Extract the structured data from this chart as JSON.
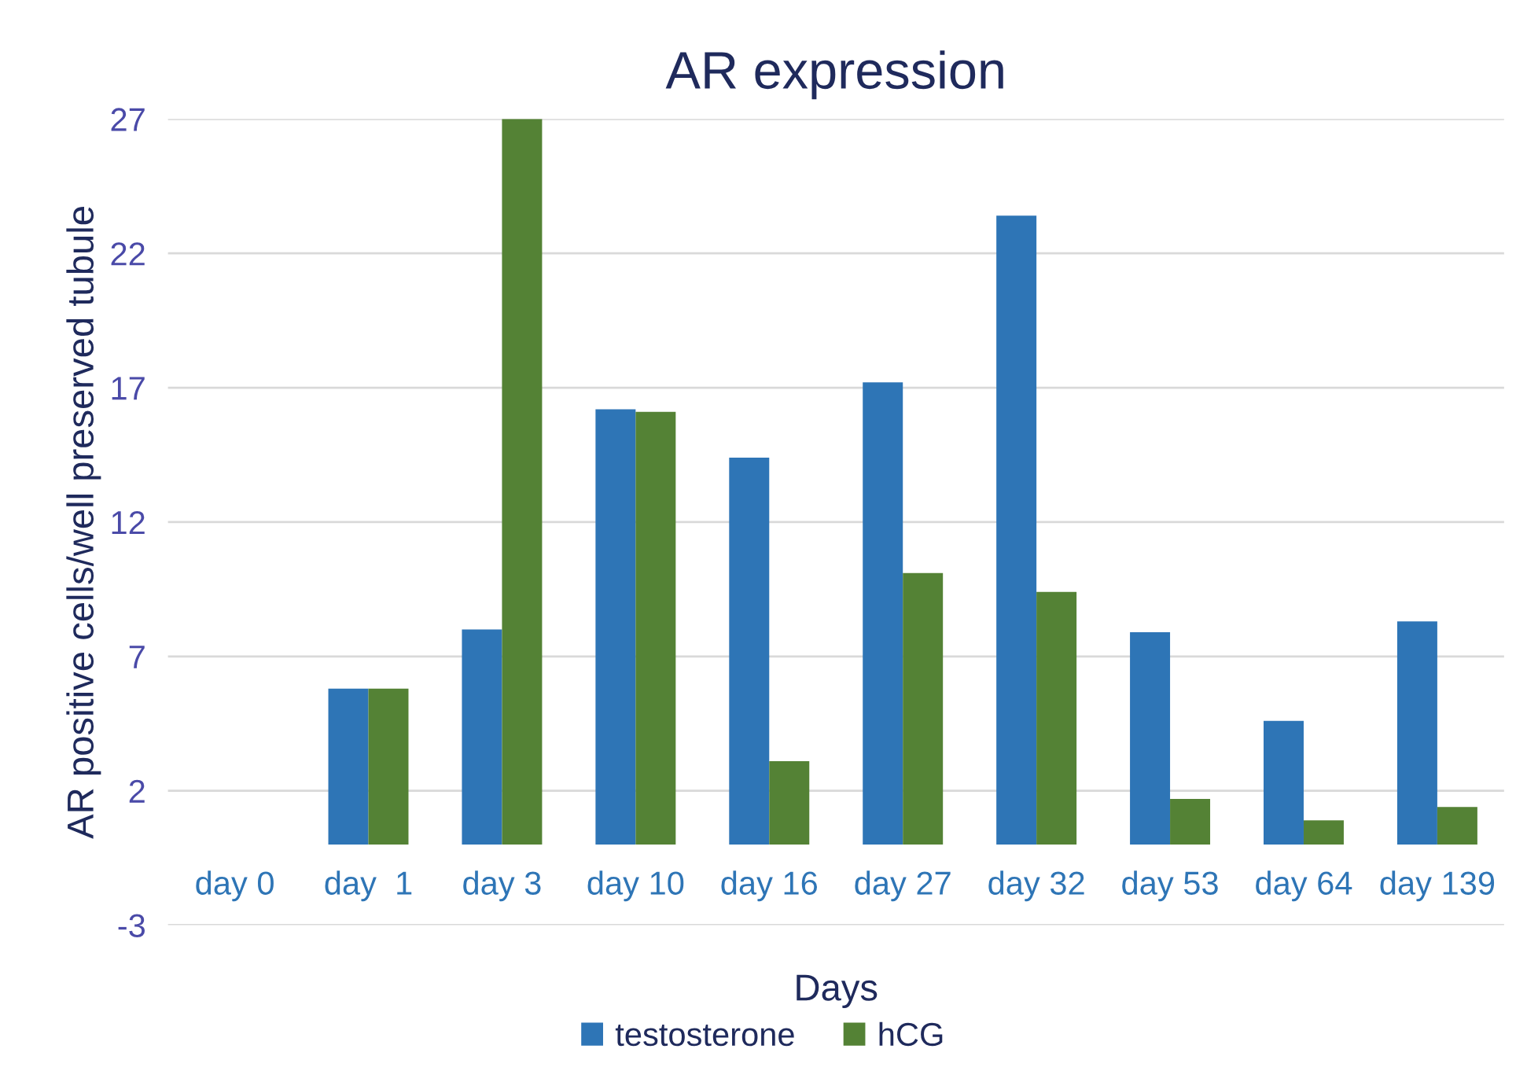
{
  "chart_data": {
    "type": "bar",
    "title": "AR expression",
    "xlabel": "Days",
    "ylabel": "AR positive cells/well preserved tubule",
    "categories": [
      "day 0",
      "day  1",
      "day 3",
      "day 10",
      "day 16",
      "day 27",
      "day 32",
      "day 53",
      "day 64",
      "day 139"
    ],
    "series": [
      {
        "name": "testosterone",
        "color": "#2e75b6",
        "values": [
          null,
          5.8,
          8.0,
          16.2,
          14.4,
          17.2,
          23.4,
          7.9,
          4.6,
          8.3
        ]
      },
      {
        "name": "hCG",
        "color": "#548235",
        "values": [
          null,
          5.8,
          27.0,
          16.1,
          3.1,
          10.1,
          9.4,
          1.7,
          0.9,
          1.4
        ]
      }
    ],
    "ylim": [
      -3,
      27
    ],
    "yticks": [
      -3,
      2,
      7,
      12,
      17,
      22,
      27
    ],
    "grid": "y",
    "legend": "bottom"
  }
}
